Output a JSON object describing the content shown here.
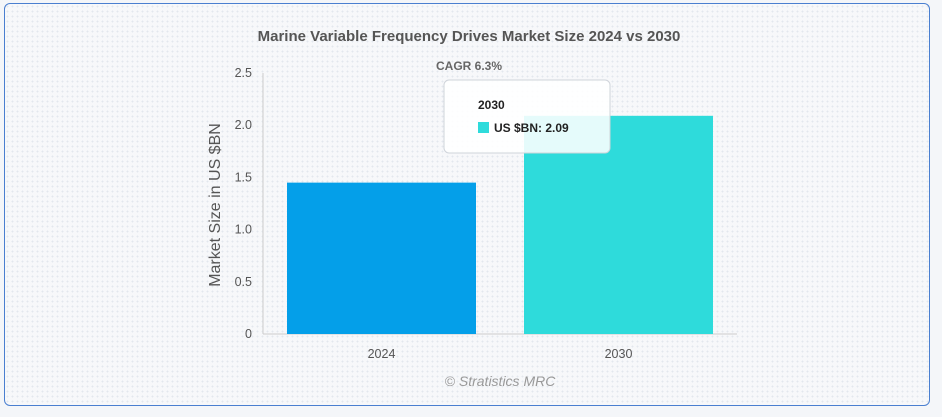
{
  "chart_data": {
    "type": "bar",
    "title": "Marine Variable Frequency Drives Market Size 2024 vs 2030",
    "subtitle": "CAGR 6.3%",
    "ylabel": "Market Size in US $BN",
    "xlabel": "",
    "categories": [
      "2024",
      "2030"
    ],
    "values": [
      1.45,
      2.09
    ],
    "colors": [
      "#049fe9",
      "#2edbdb"
    ],
    "ylim": [
      0,
      2.5
    ],
    "yticks": [
      "0",
      "0.5",
      "1.0",
      "1.5",
      "2.0",
      "2.5"
    ],
    "grid": false,
    "credit": "© Stratistics MRC",
    "tooltip": {
      "title": "2030",
      "series_label": "US $BN: 2.09",
      "color": "#2edbdb"
    }
  }
}
